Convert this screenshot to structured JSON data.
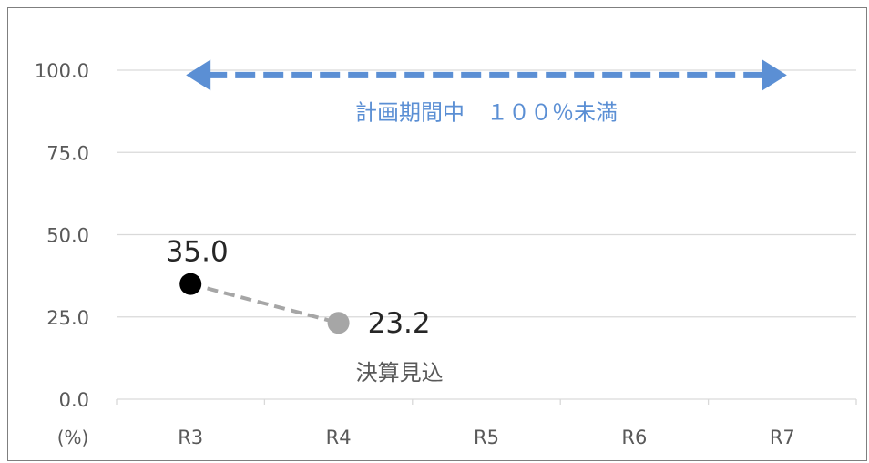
{
  "chart_data": {
    "type": "line",
    "categories": [
      "R3",
      "R4",
      "R5",
      "R6",
      "R7"
    ],
    "series": [
      {
        "values": [
          35.0,
          23.2,
          null,
          null,
          null
        ]
      }
    ],
    "data_labels": [
      "35.0",
      "23.2"
    ],
    "point_colors": [
      "#000000",
      "#a6a6a6"
    ],
    "line_color": "#a6a6a6",
    "ylim": [
      0,
      100
    ],
    "yticks": [
      "0.0",
      "25.0",
      "50.0",
      "75.0",
      "100.0"
    ],
    "unit_label": "(%)",
    "annotations": {
      "point_note": "決算見込",
      "target_label": "計画期間中　１００％未満",
      "target_value": 98.5,
      "target_range": [
        "R3",
        "R7"
      ],
      "target_color": "#5b8fd4"
    },
    "grid": true,
    "legend": "none"
  }
}
